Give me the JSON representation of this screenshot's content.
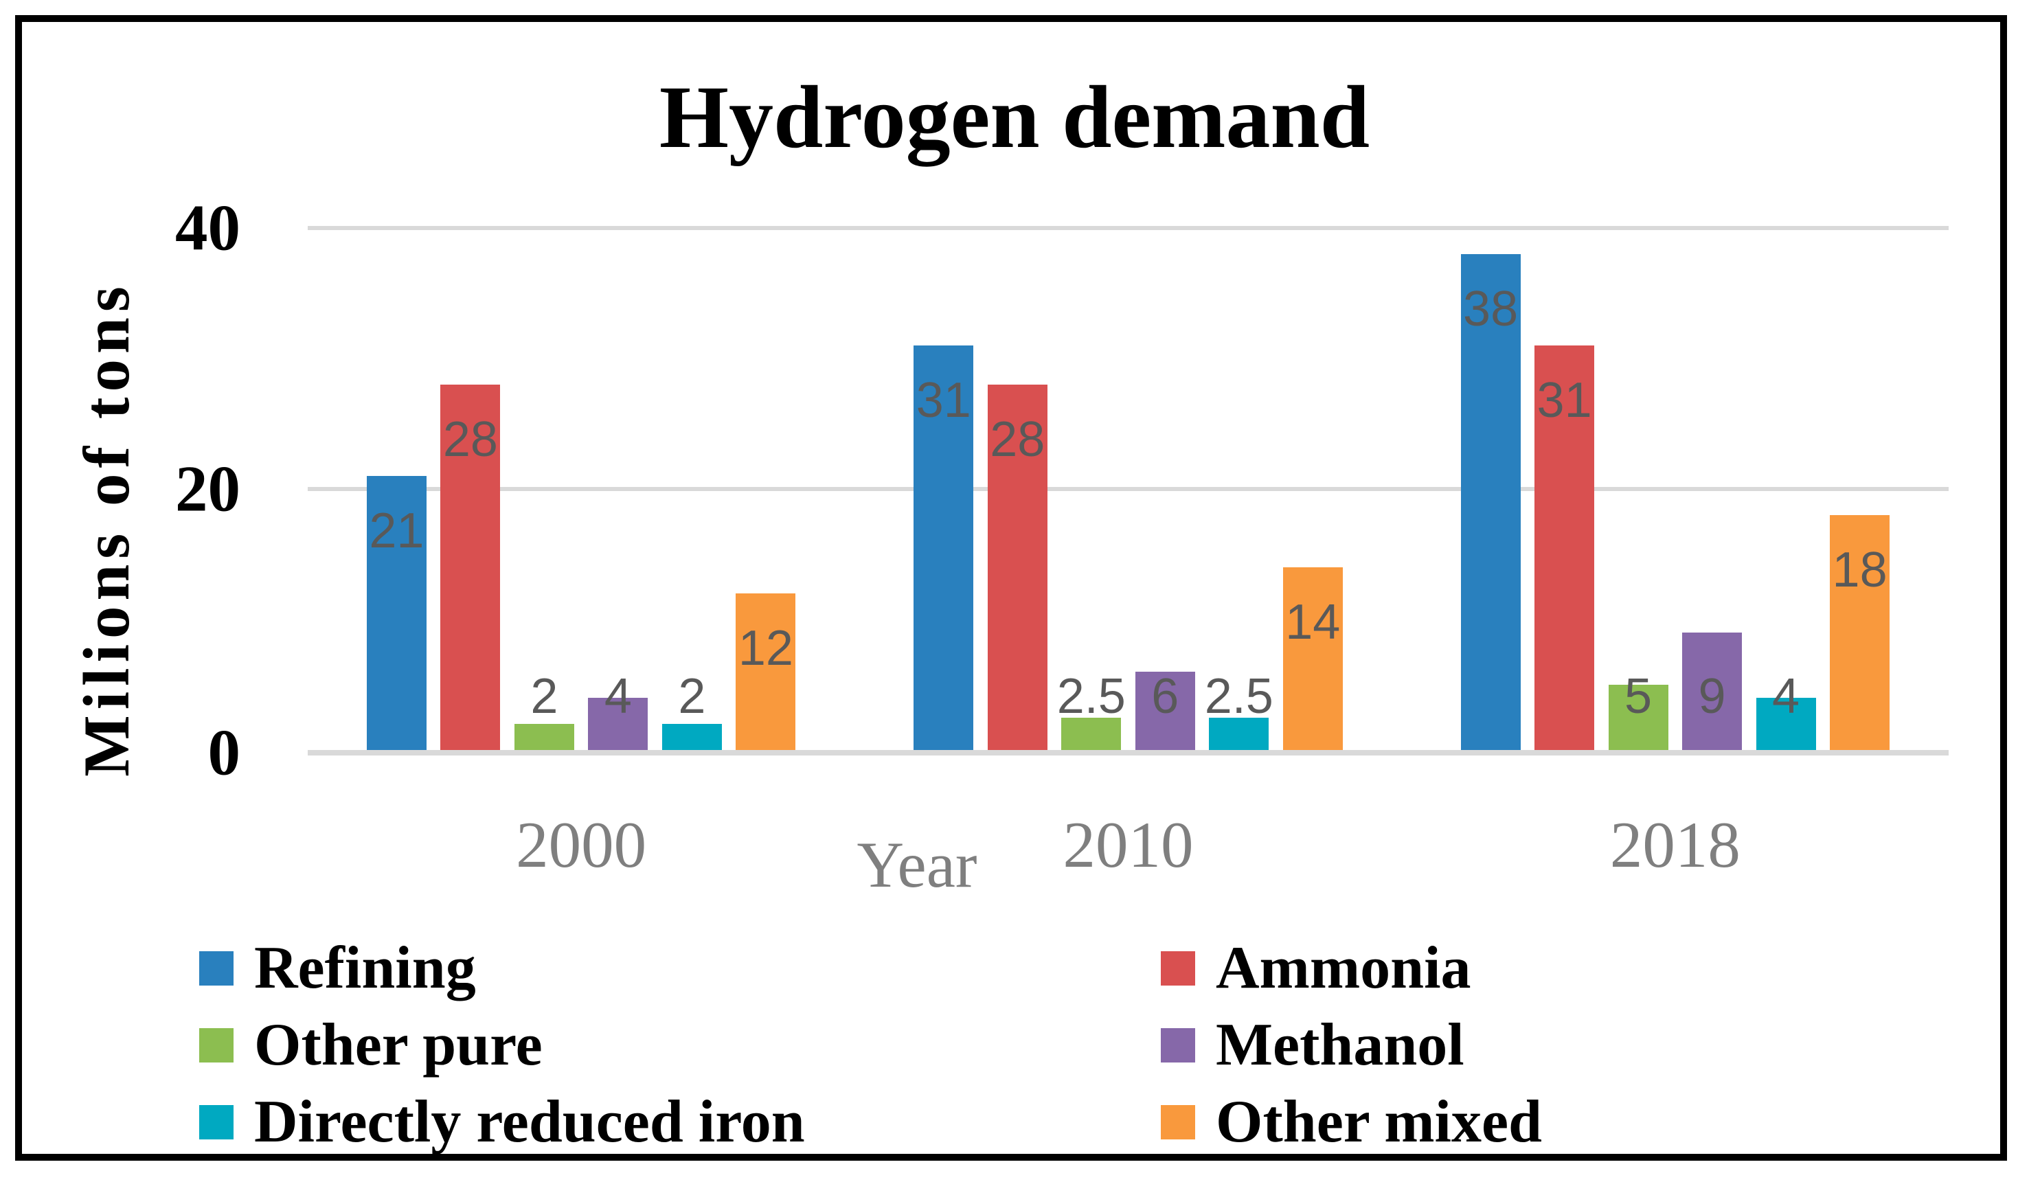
{
  "chart_data": {
    "type": "bar",
    "title": "Hydrogen demand",
    "xlabel": "Year",
    "ylabel": "Milions of tons",
    "categories": [
      "2000",
      "2010",
      "2018"
    ],
    "series": [
      {
        "name": "Refining",
        "color": "#2980BE",
        "values": [
          21,
          31,
          38
        ]
      },
      {
        "name": "Ammonia",
        "color": "#D95050",
        "values": [
          28,
          28,
          31
        ]
      },
      {
        "name": "Other pure",
        "color": "#8CBE50",
        "values": [
          2,
          2.5,
          5
        ]
      },
      {
        "name": "Methanol",
        "color": "#8668A9",
        "values": [
          4,
          6,
          9
        ]
      },
      {
        "name": "Directly reduced iron",
        "color": "#00A9C1",
        "values": [
          2,
          2.5,
          4
        ]
      },
      {
        "name": "Other mixed",
        "color": "#F9993D",
        "values": [
          12,
          14,
          18
        ]
      }
    ],
    "data_labels_shown": true,
    "y_ticks": [
      40,
      20,
      0
    ],
    "ylim": [
      0,
      40
    ],
    "grid": "horizontal",
    "legend_position": "bottom"
  },
  "legend": {
    "items": [
      {
        "label": "Refining",
        "color": "#2980BE"
      },
      {
        "label": "Ammonia",
        "color": "#D95050"
      },
      {
        "label": "Other pure",
        "color": "#8CBE50"
      },
      {
        "label": "Methanol",
        "color": "#8668A9"
      },
      {
        "label": "Directly reduced iron",
        "color": "#00A9C1"
      },
      {
        "label": "Other mixed",
        "color": "#F9993D"
      }
    ]
  },
  "colors": {
    "background": "#FFFFFF",
    "frame_border": "#000000",
    "gridline": "#D9D9D9",
    "data_label": "#595959",
    "y_tick_label": "#000000",
    "x_tick_label": "#7F7F7F",
    "x_axis_title": "#7F7F7F",
    "title_text": "#000000"
  }
}
